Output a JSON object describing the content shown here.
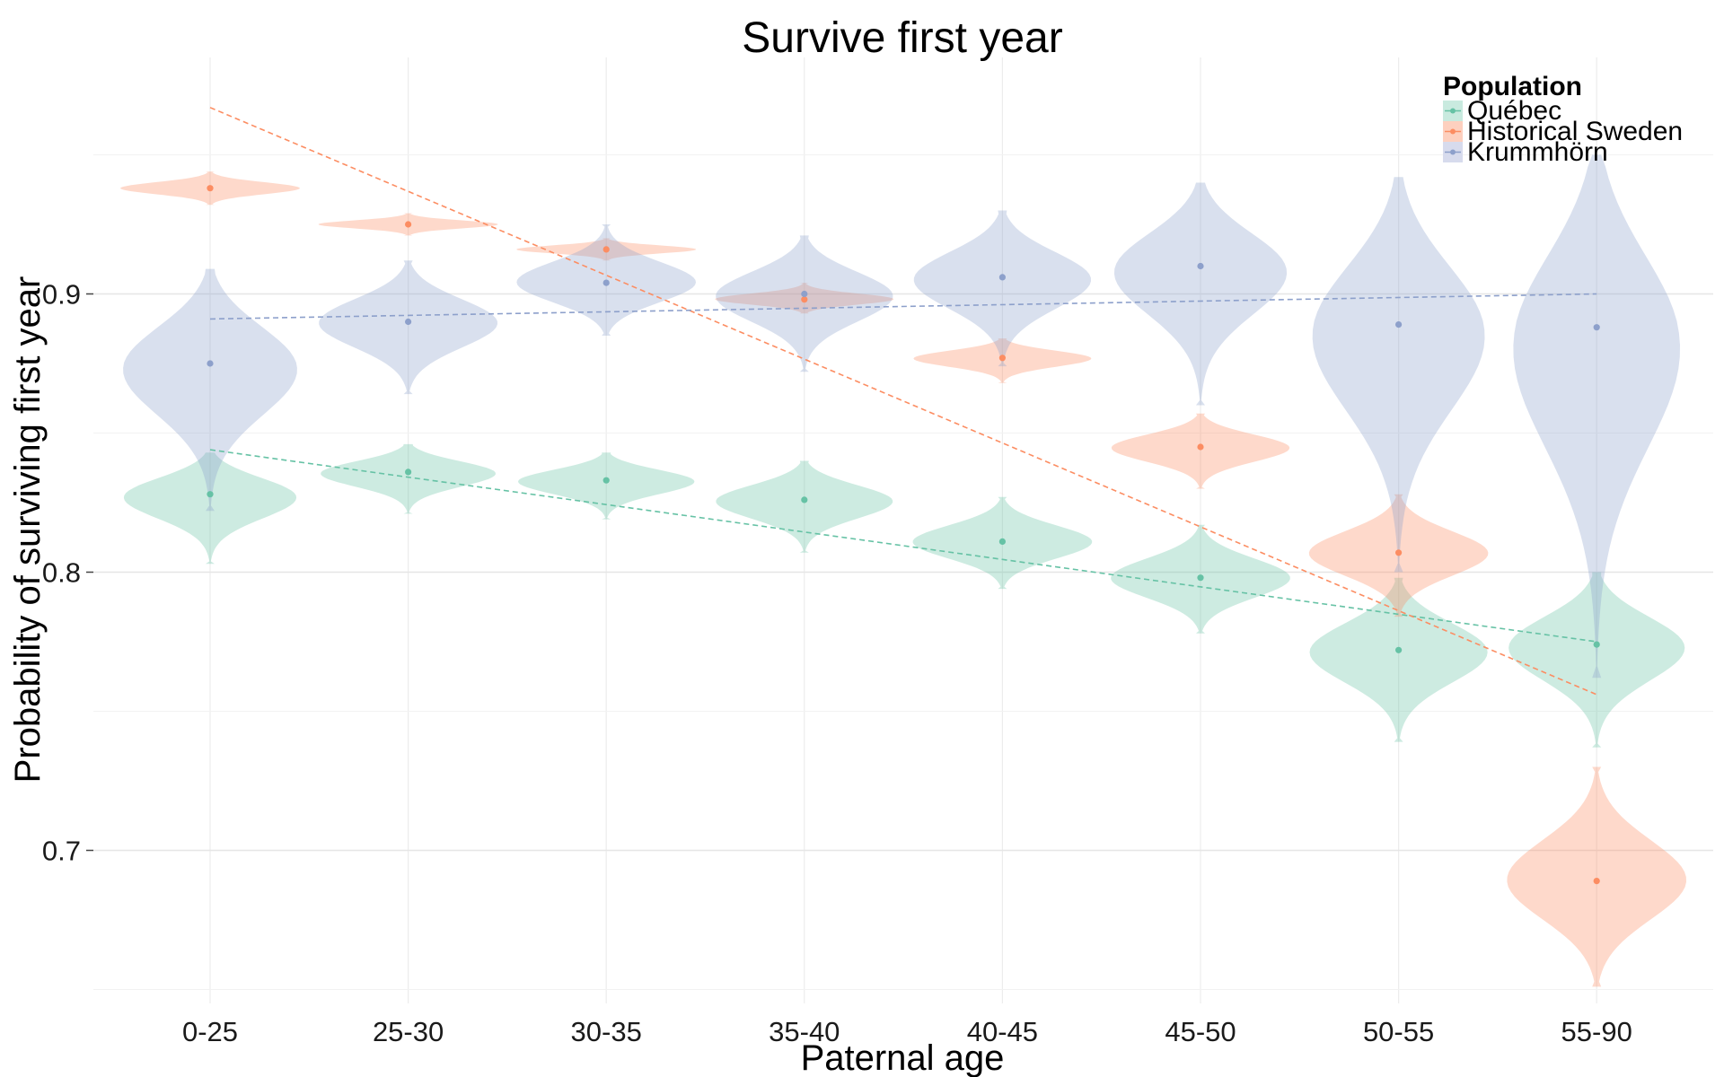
{
  "chart_data": {
    "type": "violin",
    "title": "Survive first year",
    "xlabel": "Paternal age",
    "ylabel": "Probability of surviving first year",
    "categories": [
      "0-25",
      "25-30",
      "30-35",
      "35-40",
      "40-45",
      "45-50",
      "50-55",
      "55-90"
    ],
    "ylim": [
      0.645,
      0.985
    ],
    "yticks": [
      0.7,
      0.8,
      0.9
    ],
    "ytick_labels": [
      "0.7",
      "0.8",
      "0.9"
    ],
    "grid": true,
    "legend": {
      "title": "Population",
      "position": "top-right"
    },
    "series": [
      {
        "name": "Québec",
        "color": "#66c2a5",
        "fill": "#c9eadf",
        "means": [
          0.828,
          0.836,
          0.833,
          0.826,
          0.811,
          0.798,
          0.772,
          0.774
        ],
        "ranges": [
          [
            0.803,
            0.843
          ],
          [
            0.821,
            0.846
          ],
          [
            0.819,
            0.843
          ],
          [
            0.807,
            0.84
          ],
          [
            0.794,
            0.827
          ],
          [
            0.778,
            0.817
          ],
          [
            0.739,
            0.798
          ],
          [
            0.737,
            0.8
          ]
        ],
        "trend": [
          0.844,
          0.775
        ]
      },
      {
        "name": "Historical Sweden",
        "color": "#fc8d62",
        "fill": "#fdd0bf",
        "means": [
          0.938,
          0.925,
          0.916,
          0.898,
          0.877,
          0.845,
          0.807,
          0.689
        ],
        "ranges": [
          [
            0.932,
            0.944
          ],
          [
            0.921,
            0.929
          ],
          [
            0.912,
            0.92
          ],
          [
            0.893,
            0.904
          ],
          [
            0.868,
            0.884
          ],
          [
            0.83,
            0.857
          ],
          [
            0.784,
            0.828
          ],
          [
            0.651,
            0.73
          ]
        ],
        "trend": [
          0.967,
          0.756
        ]
      },
      {
        "name": "Krummhörn",
        "color": "#8da0cb",
        "fill": "#d7dbed",
        "means": [
          0.875,
          0.89,
          0.904,
          0.9,
          0.906,
          0.91,
          0.889,
          0.888
        ],
        "ranges": [
          [
            0.822,
            0.909
          ],
          [
            0.864,
            0.912
          ],
          [
            0.885,
            0.925
          ],
          [
            0.872,
            0.921
          ],
          [
            0.874,
            0.93
          ],
          [
            0.86,
            0.94
          ],
          [
            0.8,
            0.942
          ],
          [
            0.762,
            0.95
          ]
        ],
        "trend": [
          0.891,
          0.9
        ]
      }
    ]
  }
}
